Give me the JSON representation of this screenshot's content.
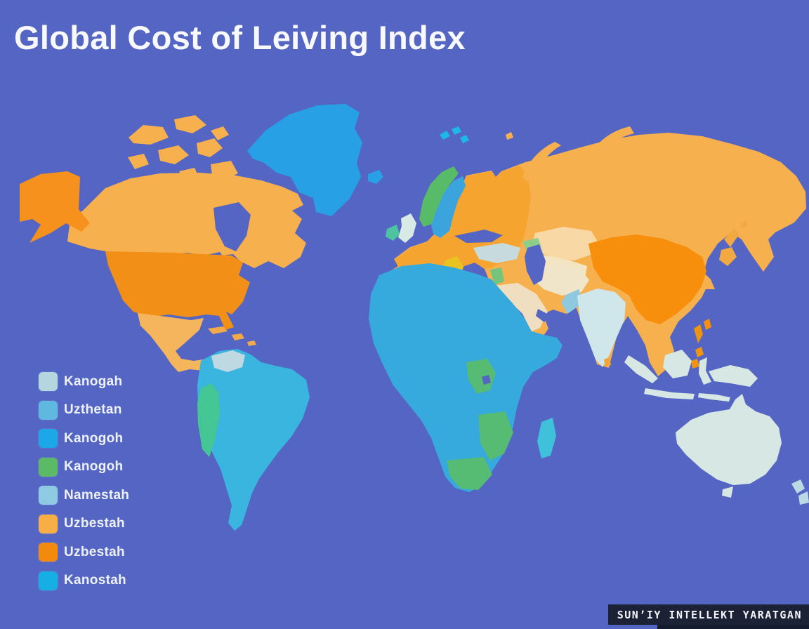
{
  "title": "Global Cost of Leiving Index",
  "colors": {
    "background": "#5465C3",
    "title": "#F8F9FC",
    "legend_label": "#EEF2F8"
  },
  "legend": {
    "items": [
      {
        "label": "Kanogah",
        "color": "#B5D6DE"
      },
      {
        "label": "Uzthetan",
        "color": "#5FB8DF"
      },
      {
        "label": "Kanogoh",
        "color": "#1CA7E8"
      },
      {
        "label": "Kanogoh",
        "color": "#5CB965"
      },
      {
        "label": "Namestah",
        "color": "#8ECBE2"
      },
      {
        "label": "Uzbestah",
        "color": "#F7AE45"
      },
      {
        "label": "Uzbestah",
        "color": "#F18A0D"
      },
      {
        "label": "Kanostah",
        "color": "#15AEE5"
      }
    ]
  },
  "watermark": {
    "text": "SUN’IY INTELLEKT YARATGAN",
    "background": "#1C2236",
    "text_color": "#F2F4F8"
  },
  "map": {
    "regions": {
      "ocean": "#5465C3",
      "canada": "#F7B04E",
      "alaska": "#F5911C",
      "usa": "#F28F16",
      "mexico": "#F5B55C",
      "caribbean": "#F2A94A",
      "greenland": "#27A0E5",
      "south_america": "#39B5DF",
      "venezuela": "#BFD9E2",
      "andes_green": "#45C795",
      "africa": "#37AADD",
      "africa_green": "#56BC74",
      "madagascar": "#3FC0DB",
      "eurasia": "#F7B04E",
      "europe": "#F5A52F",
      "norway_green": "#57BB68",
      "sweden_blue": "#3BA4DC",
      "uk": "#D9E9E6",
      "ireland": "#4DC3A0",
      "balkans_gold": "#E9C31F",
      "turkey": "#C7DADD",
      "levant_green": "#74C47E",
      "caucasus_green": "#8FCD8A",
      "kazakhstan": "#F8D8A5",
      "central_asia": "#F3E4C2",
      "iran": "#F0E5C8",
      "arabia": "#EFDFC0",
      "china": "#F78E0C",
      "india": "#CFE6EA",
      "pakistan": "#8FC9DF",
      "mint_islands": "#D7E8E4",
      "japan": "#F3A943",
      "philippines": "#F0940F",
      "sri_lanka": "#F0A43C",
      "svalbard": "#1FB6E8",
      "new_zealand": "#BCD9E3"
    }
  }
}
